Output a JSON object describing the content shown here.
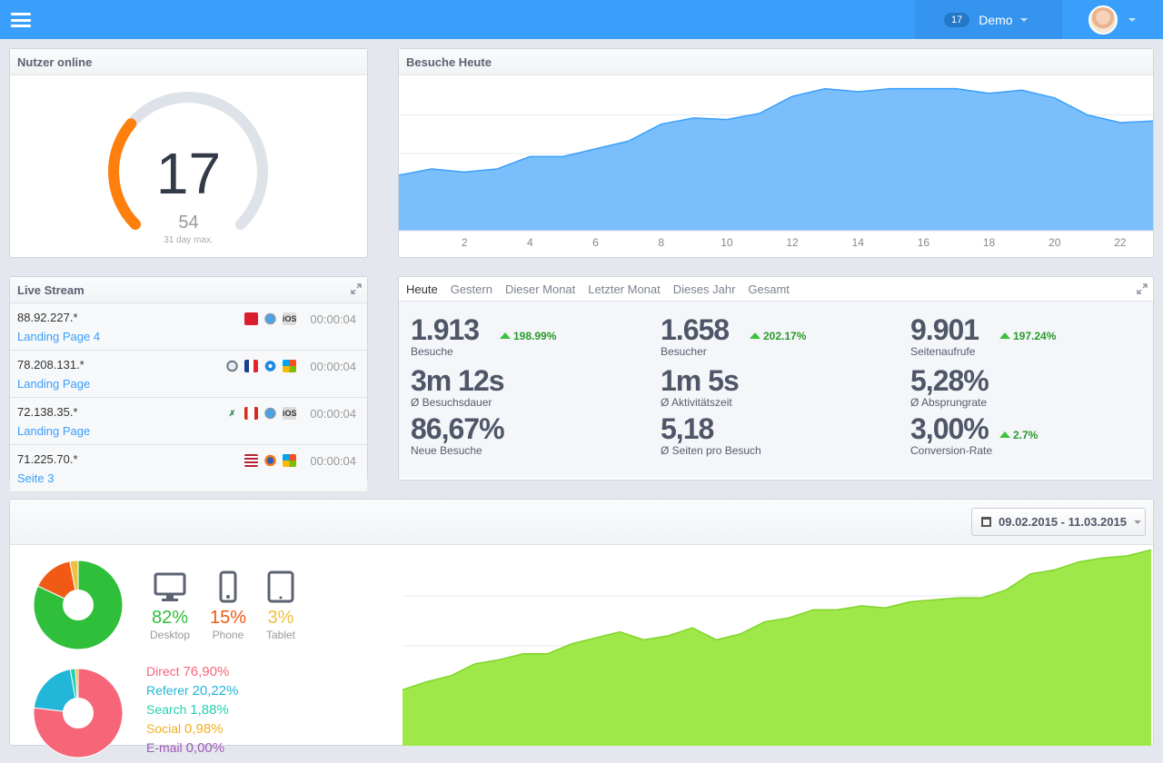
{
  "topbar": {
    "demo_badge": "17",
    "demo_label": "Demo"
  },
  "online": {
    "title": "Nutzer online",
    "current": "17",
    "max": "54",
    "max_label": "31 day max.",
    "fraction": 0.315,
    "color_active": "#ff7f0e",
    "color_track": "#dde3e8"
  },
  "visits_today": {
    "title": "Besuche Heute"
  },
  "live_stream": {
    "title": "Live Stream",
    "rows": [
      {
        "ip": "88.92.227.*",
        "page": "Landing Page 4",
        "time": "00:00:04",
        "icons": [
          "flag-norway-icon",
          "safari-icon",
          "ios-icon"
        ]
      },
      {
        "ip": "78.208.131.*",
        "page": "Landing Page",
        "time": "00:00:04",
        "icons": [
          "mac-os-icon",
          "flag-france-icon",
          "internet-explorer-icon",
          "windows-icon"
        ]
      },
      {
        "ip": "72.138.35.*",
        "page": "Landing Page",
        "time": "00:00:04",
        "icons": [
          "xing-icon",
          "flag-canada-icon",
          "safari-icon",
          "ios-icon"
        ]
      },
      {
        "ip": "71.225.70.*",
        "page": "Seite 3",
        "time": "00:00:04",
        "icons": [
          "flag-usa-icon",
          "firefox-icon",
          "windows-icon"
        ]
      }
    ]
  },
  "stats": {
    "tabs": [
      "Heute",
      "Gestern",
      "Dieser Monat",
      "Letzter Monat",
      "Dieses Jahr",
      "Gesamt"
    ],
    "items": [
      {
        "value": "1.913",
        "label": "Besuche",
        "change": "198.99%"
      },
      {
        "value": "1.658",
        "label": "Besucher",
        "change": "202.17%"
      },
      {
        "value": "9.901",
        "label": "Seitenaufrufe",
        "change": "197.24%"
      },
      {
        "value": "3m 12s",
        "label": "Ø Besuchsdauer",
        "change": ""
      },
      {
        "value": "1m 5s",
        "label": "Ø Aktivitätszeit",
        "change": ""
      },
      {
        "value": "5,28%",
        "label": "Ø Absprungrate",
        "change": ""
      },
      {
        "value": "86,67%",
        "label": "Neue Besuche",
        "change": ""
      },
      {
        "value": "5,18",
        "label": "Ø Seiten pro Besuch",
        "change": ""
      },
      {
        "value": "3,00%",
        "label": "Conversion-Rate",
        "change": "2.7%"
      }
    ]
  },
  "bottom": {
    "date_range": "09.02.2015 - 11.03.2015",
    "devices": [
      {
        "pct": "82%",
        "label": "Desktop",
        "icon": "desktop-icon",
        "color": "#2fbf3a"
      },
      {
        "pct": "15%",
        "label": "Phone",
        "icon": "phone-icon",
        "color": "#f05a14"
      },
      {
        "pct": "3%",
        "label": "Tablet",
        "icon": "tablet-icon",
        "color": "#f0c040"
      }
    ],
    "sources": [
      {
        "name": "Direct",
        "pct": "76,90%",
        "color": "#f76678"
      },
      {
        "name": "Referer",
        "pct": "20,22%",
        "color": "#22b6d8"
      },
      {
        "name": "Search",
        "pct": "1,88%",
        "color": "#26cfb0"
      },
      {
        "name": "Social",
        "pct": "0,98%",
        "color": "#f0b020"
      },
      {
        "name": "E-mail",
        "pct": "0,00%",
        "color": "#9b59b6"
      }
    ]
  },
  "chart_data": [
    {
      "type": "area",
      "title": "Besuche Heute",
      "x": [
        0,
        1,
        2,
        3,
        4,
        5,
        6,
        7,
        8,
        9,
        10,
        11,
        12,
        13,
        14,
        15,
        16,
        17,
        18,
        19,
        20,
        21,
        22,
        23
      ],
      "xticks": [
        2,
        4,
        6,
        8,
        10,
        12,
        14,
        16,
        18,
        20,
        22
      ],
      "series": [
        {
          "values": [
            36,
            40,
            38,
            40,
            48,
            48,
            53,
            58,
            69,
            73,
            72,
            76,
            87,
            92,
            90,
            92,
            92,
            92,
            89,
            91,
            86,
            75,
            70,
            71
          ]
        }
      ],
      "ylim": [
        0,
        100
      ],
      "color": "#7abffc",
      "line_color": "#3a9ffb",
      "grid": true
    },
    {
      "type": "pie",
      "labels": [
        "Desktop",
        "Phone",
        "Tablet"
      ],
      "values": [
        82,
        15,
        3
      ],
      "colors": [
        "#2fbf3a",
        "#f05a14",
        "#f0c040"
      ]
    },
    {
      "type": "pie",
      "labels": [
        "Direct",
        "Referer",
        "Search",
        "Social",
        "E-mail"
      ],
      "values": [
        76.9,
        20.22,
        1.88,
        0.98,
        0.0
      ],
      "colors": [
        "#f76678",
        "#22b6d8",
        "#26cfb0",
        "#f0b020",
        "#9b59b6"
      ]
    },
    {
      "type": "area",
      "x": [
        1,
        2,
        3,
        4,
        5,
        6,
        7,
        8,
        9,
        10,
        11,
        12,
        13,
        14,
        15,
        16,
        17,
        18,
        19,
        20,
        21,
        22,
        23,
        24,
        25,
        26,
        27,
        28,
        29,
        30,
        31,
        32
      ],
      "series": [
        {
          "values": [
            28,
            32,
            35,
            41,
            43,
            46,
            46,
            51,
            54,
            57,
            53,
            55,
            59,
            53,
            56,
            62,
            64,
            68,
            68,
            70,
            69,
            72,
            73,
            74,
            74,
            78,
            86,
            88,
            92,
            94,
            95,
            98
          ]
        }
      ],
      "ylim": [
        0,
        100
      ],
      "color": "#9ee84a",
      "line_color": "#7fd42a",
      "grid": true
    }
  ]
}
